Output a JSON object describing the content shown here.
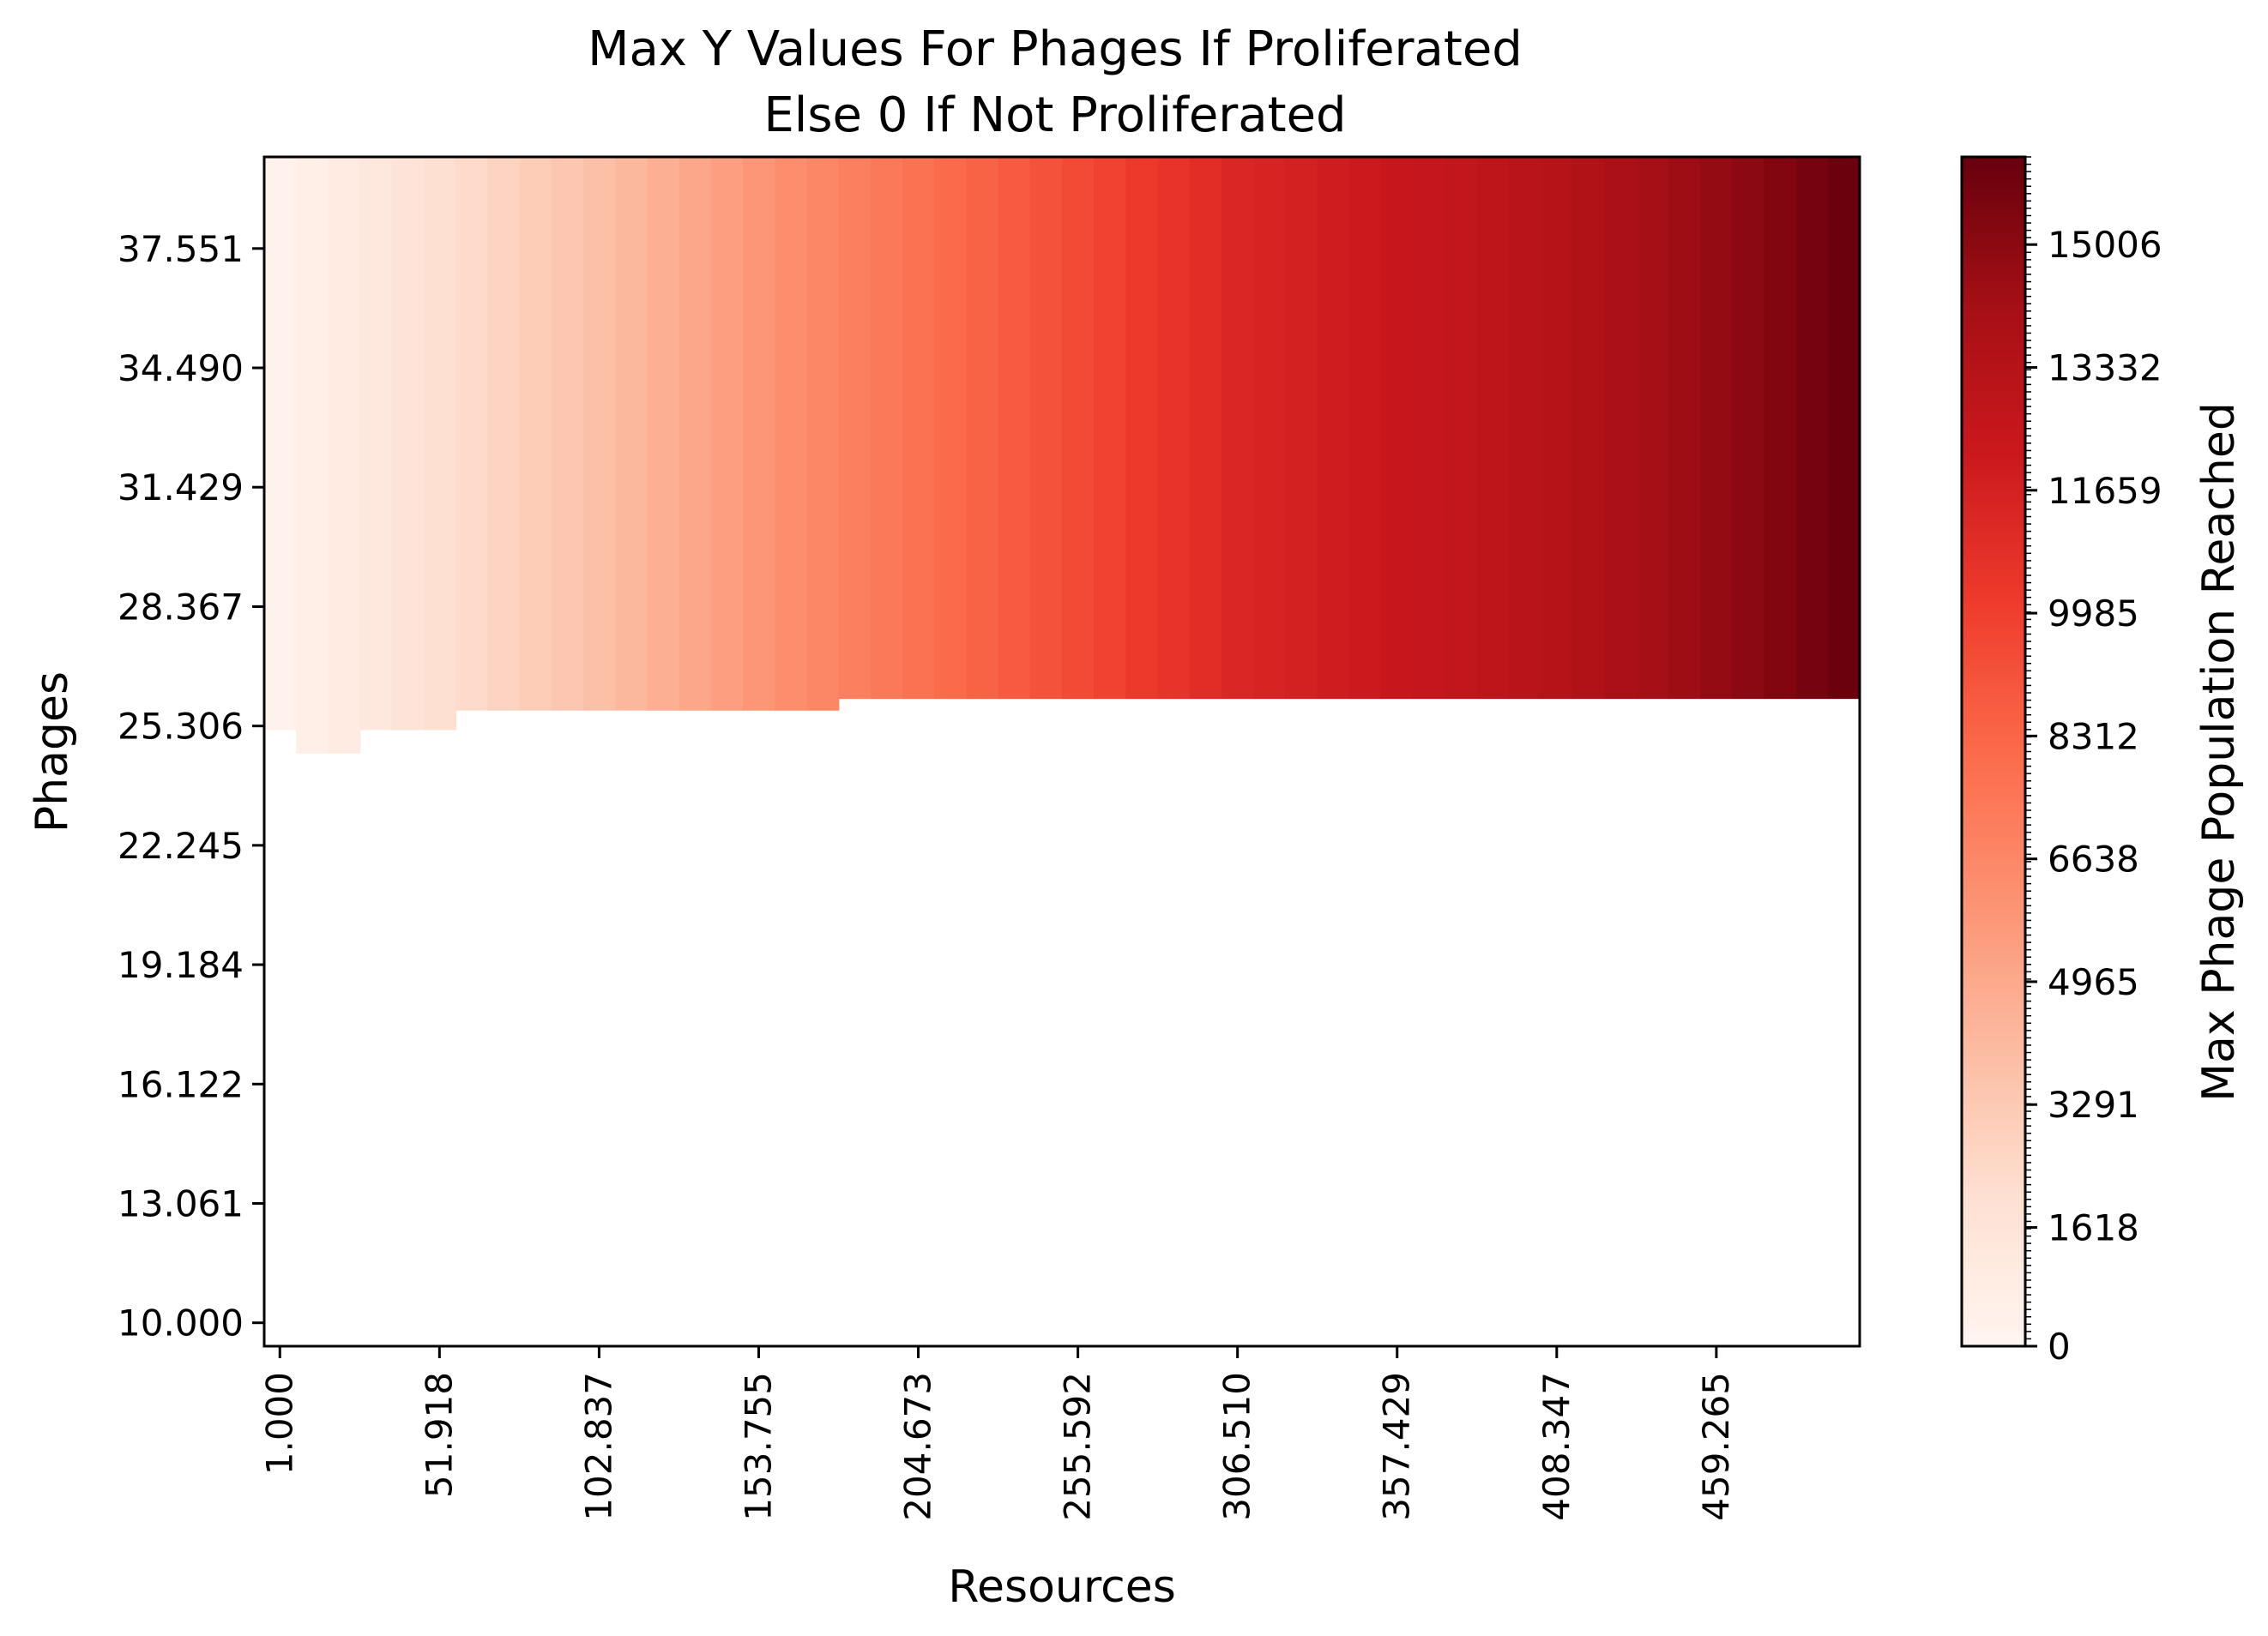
{
  "chart_data": {
    "type": "heatmap",
    "title": [
      "Max Y Values For Phages If Proliferated",
      "Else 0 If Not Proliferated"
    ],
    "xlabel": "Resources",
    "ylabel": "Phages",
    "xlim": [
      -4.0,
      505.0
    ],
    "ylim": [
      9.4,
      39.9
    ],
    "x_ticks": [
      "1.000",
      "51.918",
      "102.837",
      "153.755",
      "204.673",
      "255.592",
      "306.510",
      "357.429",
      "408.347",
      "459.265"
    ],
    "y_ticks": [
      "10.000",
      "13.061",
      "16.122",
      "19.184",
      "22.245",
      "25.306",
      "28.367",
      "31.429",
      "34.490",
      "37.551"
    ],
    "colormap": "Reds",
    "colorbar": {
      "label": "Max Phage Population Reached",
      "ticks": [
        "0",
        "1618",
        "3291",
        "4965",
        "6638",
        "8312",
        "9985",
        "11659",
        "13332",
        "15006"
      ],
      "range": [
        0,
        16200
      ]
    },
    "proliferation_threshold": [
      {
        "x_from": -4.0,
        "x_to": 6.0,
        "phages_min": 25.2
      },
      {
        "x_from": 6.0,
        "x_to": 26.0,
        "phages_min": 24.6
      },
      {
        "x_from": 26.0,
        "x_to": 56.0,
        "phages_min": 25.2
      },
      {
        "x_from": 56.0,
        "x_to": 179.0,
        "phages_min": 25.7
      },
      {
        "x_from": 179.0,
        "x_to": 505.0,
        "phages_min": 26.0
      }
    ],
    "max_population_by_resources": {
      "resources": [
        1,
        51.918,
        102.837,
        153.755,
        204.673,
        255.592,
        306.51,
        357.429,
        408.347,
        459.265,
        505
      ],
      "values": [
        250,
        2000,
        3800,
        5900,
        7700,
        9500,
        11300,
        12300,
        13300,
        14700,
        16200
      ]
    },
    "not_proliferated_value": 0,
    "grid": false
  }
}
